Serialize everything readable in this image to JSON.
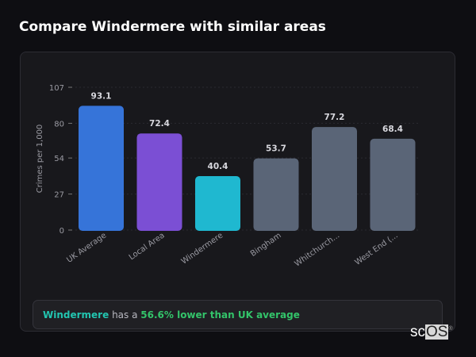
{
  "header": {
    "title": "Compare Windermere with similar areas"
  },
  "chart_data": {
    "type": "bar",
    "title": "",
    "xlabel": "",
    "ylabel": "Crimes per 1,000",
    "ylim": [
      0,
      107
    ],
    "yticks": [
      0,
      27,
      54,
      80,
      107
    ],
    "grid": true,
    "categories": [
      "UK Average",
      "Local Area",
      "Windermere",
      "Bingham",
      "Whitchurch...",
      "West End (..."
    ],
    "values": [
      93.1,
      72.4,
      40.4,
      53.7,
      77.2,
      68.4
    ],
    "value_labels": [
      "93.1",
      "72.4",
      "40.4",
      "53.7",
      "77.2",
      "68.4"
    ],
    "colors": [
      "#3674d9",
      "#7b4fd4",
      "#1fb8d0",
      "#5a6577",
      "#5a6577",
      "#5a6577"
    ]
  },
  "insight": {
    "area": "Windermere",
    "middle": " has a ",
    "highlight": "56.6% lower than UK average"
  },
  "logo": {
    "text": "scOS"
  }
}
